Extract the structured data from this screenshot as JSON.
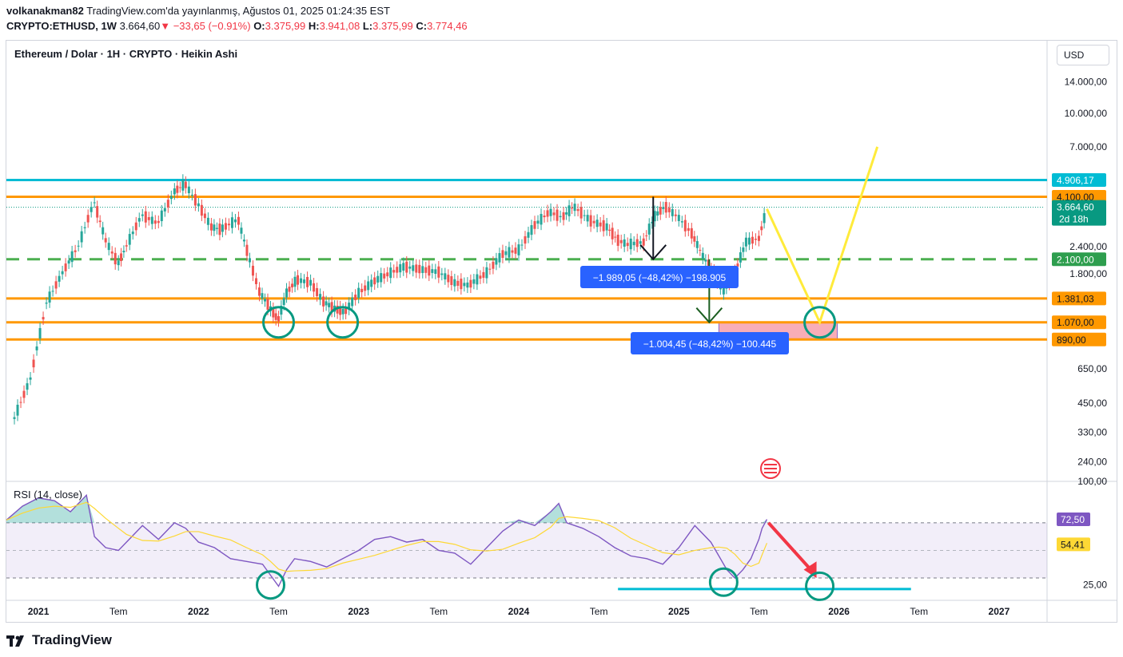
{
  "header": {
    "author": "volkanakman82",
    "published": "TradingView.com'da yayınlanmış, Ağustos 01, 2025 01:24:35 EST",
    "symbol": "CRYPTO:ETHUSD, 1W",
    "price": "3.664,60",
    "change": "−33,65 (−0.91%)",
    "o_label": "O:",
    "o_value": "3.375,99",
    "h_label": "H:",
    "h_value": "3.941,08",
    "l_label": "L:",
    "l_value": "3.375,99",
    "c_label": "C:",
    "c_value": "3.774,46"
  },
  "chart_title": "Ethereum  / Dolar · 1H · CRYPTO · Heikin Ashi",
  "currency_button": "USD",
  "rsi_label": "RSI (14, close)",
  "brand": "TradingView",
  "colors": {
    "up": "#26a69a",
    "down": "#ef5350",
    "cyan": "#00bcd4",
    "orange": "#ff9800",
    "green_dash": "#4caf50",
    "yellow": "#ffeb3b",
    "rsi_line": "#7e57c2",
    "rsi_ma": "#fdd835",
    "teal_circle": "#089981",
    "measure_blue": "#2962ff"
  },
  "chart_data": [
    {
      "type": "candlestick",
      "style": "Heikin Ashi",
      "y_scale": "log",
      "ylim": [
        200,
        17000
      ],
      "y_ticks": [
        "14.000,00",
        "10.000,00",
        "7.000,00",
        "2.400,00",
        "1.800,00",
        "650,00",
        "450,00",
        "330,00",
        "240,00"
      ],
      "y_tick_values": [
        14000,
        10000,
        7000,
        2400,
        1800,
        650,
        450,
        330,
        240
      ],
      "x_ticks": [
        "2021",
        "Tem",
        "2022",
        "Tem",
        "2023",
        "Tem",
        "2024",
        "Tem",
        "2025",
        "Tem",
        "2026",
        "Tem",
        "2027"
      ],
      "x_tick_years": [
        2021.0,
        2021.5,
        2022.0,
        2022.5,
        2023.0,
        2023.5,
        2024.0,
        2024.5,
        2025.0,
        2025.5,
        2026.0,
        2026.5,
        2027.0
      ],
      "x_range_years": [
        2020.8,
        2027.3
      ],
      "series": [
        {
          "x": [
            2020.85,
            2020.95,
            2021.05,
            2021.15,
            2021.25,
            2021.35,
            2021.42,
            2021.5,
            2021.55,
            2021.65,
            2021.75,
            2021.85,
            2021.92,
            2022.0,
            2022.08,
            2022.15,
            2022.25,
            2022.32,
            2022.38,
            2022.45,
            2022.5,
            2022.55,
            2022.62,
            2022.7,
            2022.78,
            2022.85,
            2022.92,
            2023.0,
            2023.1,
            2023.2,
            2023.3,
            2023.4,
            2023.5,
            2023.6,
            2023.7,
            2023.8,
            2023.9,
            2024.0,
            2024.1,
            2024.2,
            2024.28,
            2024.35,
            2024.45,
            2024.55,
            2024.62,
            2024.7,
            2024.78,
            2024.85,
            2024.92,
            2025.0,
            2025.08,
            2025.15,
            2025.22,
            2025.28,
            2025.35,
            2025.42,
            2025.5,
            2025.55
          ],
          "y": [
            380,
            580,
            1300,
            1800,
            2400,
            3900,
            2600,
            2000,
            2400,
            3400,
            3100,
            4300,
            4700,
            3800,
            3000,
            2900,
            3200,
            2100,
            1500,
            1250,
            1100,
            1450,
            1700,
            1650,
            1350,
            1250,
            1200,
            1450,
            1650,
            1800,
            1950,
            1900,
            1850,
            1650,
            1600,
            1800,
            2200,
            2300,
            3000,
            3500,
            3300,
            3700,
            3200,
            3000,
            2600,
            2450,
            2500,
            3300,
            3700,
            3300,
            2800,
            2200,
            1800,
            1500,
            1800,
            2500,
            2600,
            3600
          ]
        }
      ],
      "horizontal_levels": [
        {
          "label": "4.906,17",
          "value": 4906.17,
          "color": "#00bcd4"
        },
        {
          "label": "4.100,00",
          "value": 4100,
          "color": "#ff9800"
        },
        {
          "label": "3.664,60",
          "sub": "2d 18h",
          "value": 3664.6,
          "color": "#089981"
        },
        {
          "label": "2.100,00",
          "value": 2100,
          "color": "#4caf50",
          "style": "dashed"
        },
        {
          "label": "1.381,03",
          "value": 1381.03,
          "color": "#ff9800"
        },
        {
          "label": "1.070,00",
          "value": 1070,
          "color": "#ff9800"
        },
        {
          "label": "890,00",
          "value": 890,
          "color": "#ff9800"
        }
      ],
      "annotations": [
        {
          "text": "−1.989,05 (−48,42%) −198.905"
        },
        {
          "text": "−1.004,45 (−48,42%) −100.445"
        }
      ],
      "projection": {
        "points_years": [
          2025.55,
          2025.88,
          2026.24
        ],
        "points_values": [
          3600,
          1070,
          7000
        ]
      }
    },
    {
      "type": "line",
      "title": "RSI (14, close)",
      "ylim": [
        15,
        100
      ],
      "y_ticks": [
        "100,00",
        "25,00"
      ],
      "y_tick_values": [
        100,
        25
      ],
      "levels": [
        {
          "label": "72,50",
          "value": 72.5,
          "color": "#7e57c2"
        },
        {
          "label": "54,41",
          "value": 54.41,
          "color": "#fdd835"
        }
      ],
      "band": [
        30,
        70
      ],
      "series": [
        {
          "x": [
            2020.8,
            2020.9,
            2021.0,
            2021.1,
            2021.2,
            2021.3,
            2021.35,
            2021.42,
            2021.5,
            2021.55,
            2021.65,
            2021.75,
            2021.85,
            2021.92,
            2022.0,
            2022.1,
            2022.2,
            2022.3,
            2022.4,
            2022.45,
            2022.5,
            2022.55,
            2022.6,
            2022.7,
            2022.8,
            2022.9,
            2023.0,
            2023.1,
            2023.2,
            2023.3,
            2023.4,
            2023.5,
            2023.6,
            2023.7,
            2023.8,
            2023.9,
            2024.0,
            2024.1,
            2024.2,
            2024.25,
            2024.3,
            2024.4,
            2024.5,
            2024.6,
            2024.7,
            2024.8,
            2024.9,
            2025.0,
            2025.1,
            2025.2,
            2025.25,
            2025.3,
            2025.35,
            2025.4,
            2025.45,
            2025.5,
            2025.52,
            2025.55
          ],
          "y": [
            72,
            82,
            88,
            86,
            78,
            90,
            60,
            52,
            50,
            56,
            68,
            58,
            70,
            66,
            56,
            52,
            44,
            42,
            40,
            32,
            24,
            36,
            44,
            42,
            38,
            44,
            50,
            58,
            60,
            56,
            58,
            50,
            48,
            40,
            52,
            64,
            72,
            68,
            78,
            84,
            70,
            66,
            60,
            52,
            46,
            44,
            40,
            52,
            68,
            56,
            46,
            36,
            30,
            36,
            44,
            58,
            66,
            72.5
          ]
        }
      ],
      "trendline": {
        "from_year": 2024.62,
        "to_year": 2026.45,
        "value": 22
      }
    }
  ]
}
